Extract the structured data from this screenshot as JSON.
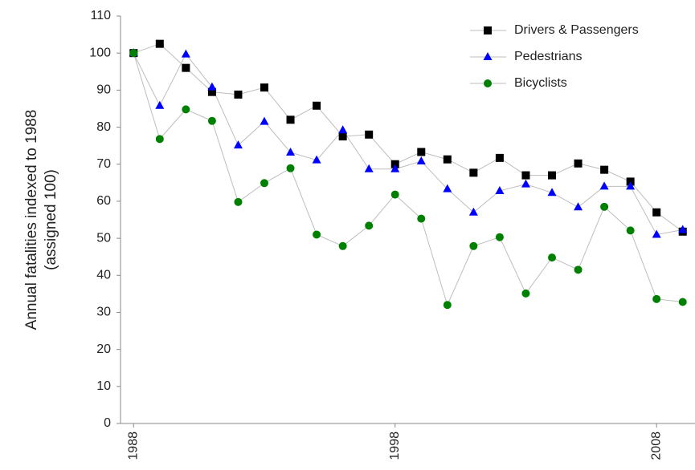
{
  "chart_data": {
    "type": "line",
    "ylabel": [
      "Annual fatalities indexed to 1988",
      "(assigned 100)"
    ],
    "x": [
      1988,
      1989,
      1990,
      1991,
      1992,
      1993,
      1994,
      1995,
      1996,
      1997,
      1998,
      1999,
      2000,
      2001,
      2002,
      2003,
      2004,
      2005,
      2006,
      2007,
      2008,
      2009
    ],
    "xlim": [
      1987.5,
      2009.5
    ],
    "xticks": [
      1988,
      1998,
      2008
    ],
    "ylim": [
      0,
      110
    ],
    "yticks": [
      0,
      10,
      20,
      30,
      40,
      50,
      60,
      70,
      80,
      90,
      100,
      110
    ],
    "legend": "top-right",
    "line_color": "#bdbdbd",
    "series": [
      {
        "name": "Drivers & Passengers",
        "color": "#000000",
        "marker": "square",
        "values": [
          100,
          102.5,
          96,
          89.5,
          88.8,
          90.7,
          82,
          85.8,
          77.5,
          78,
          70,
          73.3,
          71.3,
          67.7,
          71.7,
          67,
          67,
          70.2,
          68.5,
          65.3,
          57,
          51.8
        ]
      },
      {
        "name": "Pedestrians",
        "color": "#0000ff",
        "marker": "triangle",
        "values": [
          100,
          85.8,
          99.7,
          90.8,
          75.1,
          81.5,
          73.2,
          71.1,
          79.2,
          68.7,
          68.7,
          70.8,
          63.3,
          57,
          62.8,
          64.6,
          62.3,
          58.4,
          64,
          64,
          51,
          52.3
        ]
      },
      {
        "name": "Bicyclists",
        "color": "#008000",
        "marker": "circle",
        "values": [
          100,
          76.8,
          84.8,
          81.7,
          59.8,
          64.9,
          68.9,
          51,
          47.9,
          53.4,
          61.8,
          55.3,
          32,
          47.9,
          50.3,
          35.1,
          44.8,
          41.5,
          58.5,
          52.1,
          33.6,
          32.8
        ]
      }
    ]
  }
}
